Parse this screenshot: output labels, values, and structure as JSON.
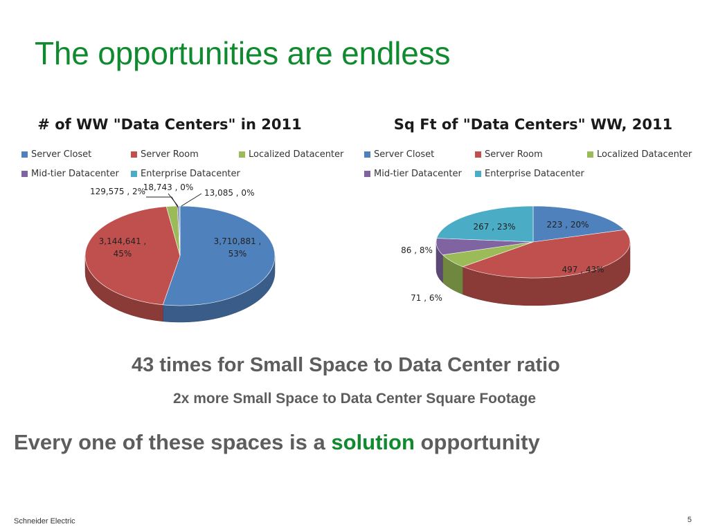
{
  "slide": {
    "title": "The opportunities are endless",
    "stat_line1": "43 times for Small Space to Data Center ratio",
    "stat_line2": "2x more Small Space to Data Center Square Footage",
    "tagline_pre": "Every one of these spaces is a ",
    "tagline_highlight": "solution",
    "tagline_post": " opportunity",
    "footer": "Schneider Electric",
    "page_number": "5"
  },
  "colors": {
    "Server Closet": "#4f81bd",
    "Server Room": "#c0504d",
    "Localized Datacenter": "#9bbb59",
    "Mid-tier Datacenter": "#8064a2",
    "Enterprise Datacenter": "#4bacc6",
    "title_green": "#0f8a2e",
    "text_gray": "#5d5d5d"
  },
  "chart_data": [
    {
      "type": "pie",
      "title": "# of WW \"Data Centers\" in 2011",
      "legend_position": "top",
      "categories": [
        "Server Closet",
        "Server Room",
        "Localized Datacenter",
        "Mid-tier Datacenter",
        "Enterprise Datacenter"
      ],
      "values": [
        3710881,
        3144641,
        129575,
        18743,
        13085
      ],
      "labels": [
        "3,710,881 , 53%",
        "3,144,641 , 45%",
        "129,575 , 2%",
        "18,743 , 0%",
        "13,085 , 0%"
      ],
      "label_lines": [
        [
          "3,710,881 ,",
          "53%"
        ],
        [
          "3,144,641 ,",
          "45%"
        ],
        [
          "129,575 , 2%"
        ],
        [
          "18,743 , 0%"
        ],
        [
          "13,085 , 0%"
        ]
      ]
    },
    {
      "type": "pie",
      "title": "Sq Ft of \"Data Centers\" WW, 2011",
      "legend_position": "top",
      "categories": [
        "Server Closet",
        "Server Room",
        "Localized Datacenter",
        "Mid-tier Datacenter",
        "Enterprise Datacenter"
      ],
      "values": [
        223,
        497,
        71,
        86,
        267
      ],
      "labels": [
        "223 , 20%",
        "497 , 43%",
        "71 , 6%",
        "86 , 8%",
        "267 , 23%"
      ],
      "label_lines": [
        [
          "223 , 20%"
        ],
        [
          "497 , 43%"
        ],
        [
          "71 , 6%"
        ],
        [
          "86 , 8%"
        ],
        [
          "267 , 23%"
        ]
      ]
    }
  ]
}
